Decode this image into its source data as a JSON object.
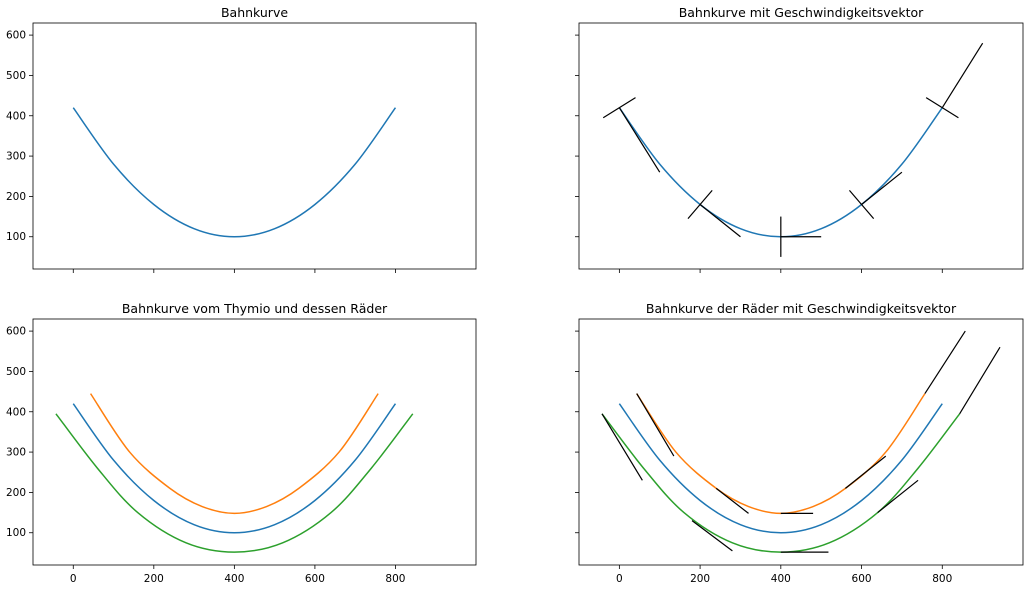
{
  "chart_data": [
    {
      "type": "line",
      "title": "Bahnkurve",
      "xlim": [
        -100,
        1000
      ],
      "ylim": [
        20,
        630
      ],
      "xticks": [],
      "yticks": [
        100,
        200,
        300,
        400,
        500,
        600
      ],
      "series": [
        {
          "color": "#1f77b4",
          "x": [
            0,
            100,
            200,
            300,
            400,
            500,
            600,
            700,
            800
          ],
          "y": [
            420,
            280,
            180,
            120,
            100,
            120,
            180,
            280,
            420
          ]
        }
      ],
      "vectors": []
    },
    {
      "type": "line",
      "title": "Bahnkurve mit Geschwindigkeitsvektor",
      "xlim": [
        -100,
        1000
      ],
      "ylim": [
        20,
        630
      ],
      "xticks": [],
      "yticks": [],
      "series": [
        {
          "color": "#1f77b4",
          "x": [
            0,
            100,
            200,
            300,
            400,
            500,
            600,
            700,
            800
          ],
          "y": [
            420,
            280,
            180,
            120,
            100,
            120,
            180,
            280,
            420
          ]
        }
      ],
      "vectors": [
        {
          "x1": 0,
          "y1": 420,
          "x2": 100,
          "y2": 260
        },
        {
          "x1": 200,
          "y1": 180,
          "x2": 300,
          "y2": 100
        },
        {
          "x1": 400,
          "y1": 100,
          "x2": 500,
          "y2": 100
        },
        {
          "x1": 600,
          "y1": 180,
          "x2": 700,
          "y2": 260
        },
        {
          "x1": 800,
          "y1": 420,
          "x2": 900,
          "y2": 580
        },
        {
          "x1": -40,
          "y1": 395,
          "x2": 40,
          "y2": 445
        },
        {
          "x1": 170,
          "y1": 145,
          "x2": 230,
          "y2": 215
        },
        {
          "x1": 400,
          "y1": 50,
          "x2": 400,
          "y2": 150
        },
        {
          "x1": 570,
          "y1": 215,
          "x2": 630,
          "y2": 145
        },
        {
          "x1": 760,
          "y1": 445,
          "x2": 840,
          "y2": 395
        }
      ]
    },
    {
      "type": "line",
      "title": "Bahnkurve vom Thymio und dessen Räder",
      "xlim": [
        -100,
        1000
      ],
      "ylim": [
        20,
        630
      ],
      "xticks": [
        0,
        200,
        400,
        600,
        800
      ],
      "yticks": [
        100,
        200,
        300,
        400,
        500,
        600
      ],
      "series": [
        {
          "color": "#1f77b4",
          "x": [
            0,
            100,
            200,
            300,
            400,
            500,
            600,
            700,
            800
          ],
          "y": [
            420,
            280,
            180,
            120,
            100,
            120,
            180,
            280,
            420
          ]
        },
        {
          "color": "#ff7f0e",
          "x": [
            43,
            140,
            240,
            320,
            400,
            480,
            560,
            660,
            757
          ],
          "y": [
            445,
            300,
            210,
            165,
            148,
            165,
            210,
            300,
            445
          ]
        },
        {
          "color": "#2ca02c",
          "x": [
            -43,
            60,
            160,
            280,
            400,
            520,
            640,
            740,
            843
          ],
          "y": [
            395,
            260,
            150,
            75,
            52,
            75,
            150,
            260,
            395
          ]
        }
      ],
      "vectors": []
    },
    {
      "type": "line",
      "title": "Bahnkurve der Räder mit Geschwindigkeitsvektor",
      "xlim": [
        -100,
        1000
      ],
      "ylim": [
        20,
        630
      ],
      "xticks": [
        0,
        200,
        400,
        600,
        800
      ],
      "yticks": [],
      "series": [
        {
          "color": "#1f77b4",
          "x": [
            0,
            100,
            200,
            300,
            400,
            500,
            600,
            700,
            800
          ],
          "y": [
            420,
            280,
            180,
            120,
            100,
            120,
            180,
            280,
            420
          ]
        },
        {
          "color": "#ff7f0e",
          "x": [
            43,
            140,
            240,
            320,
            400,
            480,
            560,
            660,
            757
          ],
          "y": [
            445,
            300,
            210,
            165,
            148,
            165,
            210,
            300,
            445
          ]
        },
        {
          "color": "#2ca02c",
          "x": [
            -43,
            60,
            160,
            280,
            400,
            520,
            640,
            740,
            843
          ],
          "y": [
            395,
            260,
            150,
            75,
            52,
            75,
            150,
            260,
            395
          ]
        }
      ],
      "vectors": [
        {
          "x1": 43,
          "y1": 445,
          "x2": 135,
          "y2": 290
        },
        {
          "x1": 240,
          "y1": 210,
          "x2": 320,
          "y2": 148
        },
        {
          "x1": 400,
          "y1": 148,
          "x2": 480,
          "y2": 148
        },
        {
          "x1": 560,
          "y1": 210,
          "x2": 660,
          "y2": 290
        },
        {
          "x1": 757,
          "y1": 445,
          "x2": 857,
          "y2": 600
        },
        {
          "x1": -43,
          "y1": 395,
          "x2": 57,
          "y2": 230
        },
        {
          "x1": 180,
          "y1": 130,
          "x2": 280,
          "y2": 55
        },
        {
          "x1": 400,
          "y1": 52,
          "x2": 518,
          "y2": 52
        },
        {
          "x1": 640,
          "y1": 150,
          "x2": 740,
          "y2": 230
        },
        {
          "x1": 843,
          "y1": 395,
          "x2": 943,
          "y2": 560
        }
      ]
    }
  ]
}
